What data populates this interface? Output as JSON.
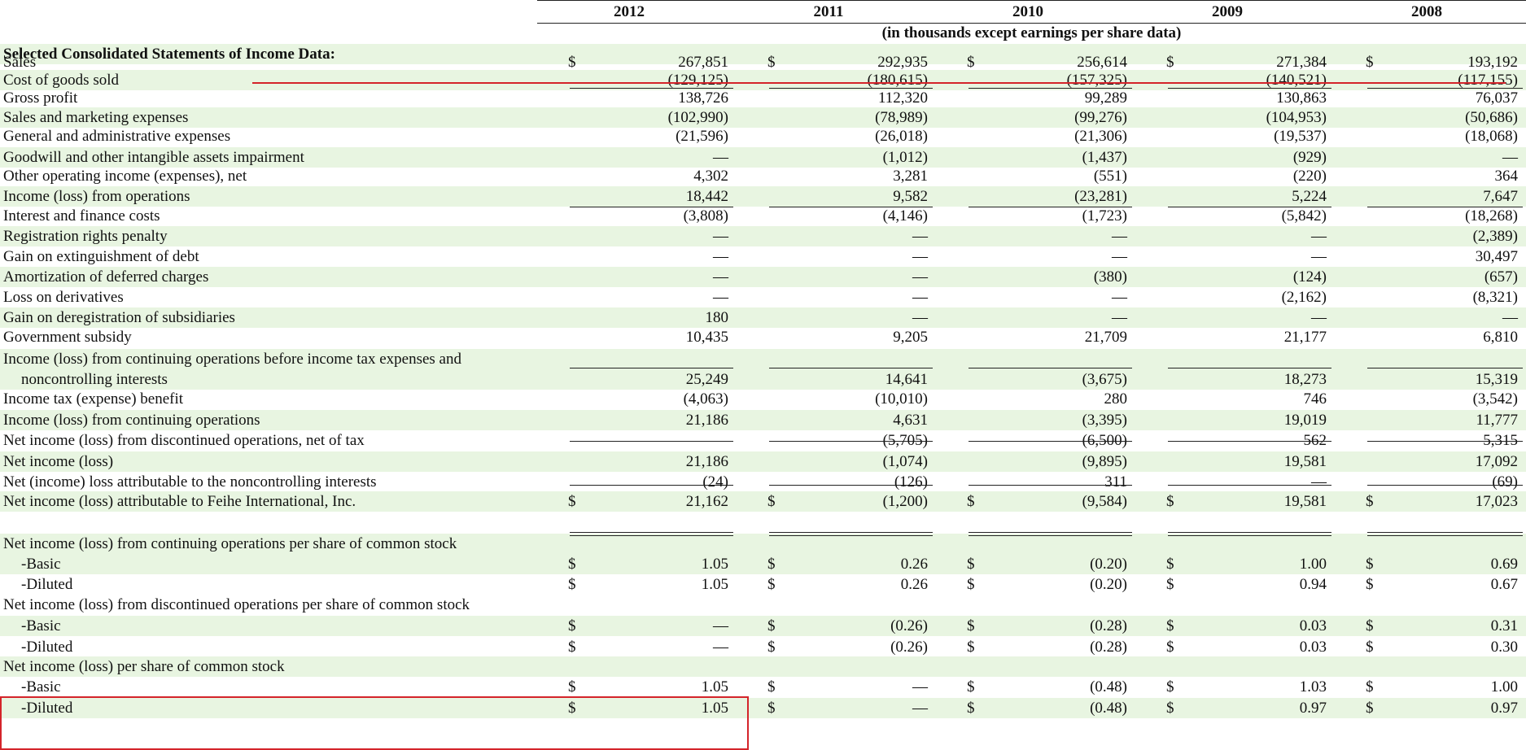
{
  "header": {
    "years": [
      "2012",
      "2011",
      "2010",
      "2009",
      "2008"
    ],
    "subheading": "(in thousands except earnings per share data)"
  },
  "table": {
    "rows": [
      {
        "label": "Selected Consolidated Statements of Income Data:",
        "bold": true,
        "values": [],
        "band": true
      },
      {
        "label": "Sales",
        "values": [
          "267,851",
          "292,935",
          "256,614",
          "271,384",
          "193,192"
        ],
        "dollar": true
      },
      {
        "label": "Cost of goods sold",
        "values": [
          "(129,125)",
          "(180,615)",
          "(157,325)",
          "(140,521)",
          "(117,155)"
        ],
        "band": true
      },
      {
        "label": "Gross profit",
        "values": [
          "138,726",
          "112,320",
          "99,289",
          "130,863",
          "76,037"
        ]
      },
      {
        "label": "Sales and marketing expenses",
        "values": [
          "(102,990)",
          "(78,989)",
          "(99,276)",
          "(104,953)",
          "(50,686)"
        ],
        "band": true
      },
      {
        "label": "General and administrative expenses",
        "values": [
          "(21,596)",
          "(26,018)",
          "(21,306)",
          "(19,537)",
          "(18,068)"
        ]
      },
      {
        "label": "Goodwill and other intangible assets impairment",
        "values": [
          "—",
          "(1,012)",
          "(1,437)",
          "(929)",
          "—"
        ],
        "band": true
      },
      {
        "label": "Other operating income (expenses), net",
        "values": [
          "4,302",
          "3,281",
          "(551)",
          "(220)",
          "364"
        ]
      },
      {
        "label": "Income (loss) from operations",
        "values": [
          "18,442",
          "9,582",
          "(23,281)",
          "5,224",
          "7,647"
        ],
        "band": true
      },
      {
        "label": "Interest and finance costs",
        "values": [
          "(3,808)",
          "(4,146)",
          "(1,723)",
          "(5,842)",
          "(18,268)"
        ]
      },
      {
        "label": "Registration rights penalty",
        "values": [
          "—",
          "—",
          "—",
          "—",
          "(2,389)"
        ],
        "band": true
      },
      {
        "label": "Gain on extinguishment of debt",
        "values": [
          "—",
          "—",
          "—",
          "—",
          "30,497"
        ]
      },
      {
        "label": "Amortization of deferred charges",
        "values": [
          "—",
          "—",
          "(380)",
          "(124)",
          "(657)"
        ],
        "band": true
      },
      {
        "label": "Loss on derivatives",
        "values": [
          "—",
          "—",
          "—",
          "(2,162)",
          "(8,321)"
        ]
      },
      {
        "label": "Gain on deregistration of subsidiaries",
        "values": [
          "180",
          "—",
          "—",
          "—",
          "—"
        ],
        "band": true
      },
      {
        "label": "Government subsidy",
        "values": [
          "10,435",
          "9,205",
          "21,709",
          "21,177",
          "6,810"
        ]
      },
      {
        "label": "Income (loss) from continuing operations before income tax expenses and",
        "values": [],
        "band": true
      },
      {
        "label": "noncontrolling interests",
        "indent": true,
        "values": [
          "25,249",
          "14,641",
          "(3,675)",
          "18,273",
          "15,319"
        ],
        "band": true
      },
      {
        "label": "Income tax (expense) benefit",
        "values": [
          "(4,063)",
          "(10,010)",
          "280",
          "746",
          "(3,542)"
        ]
      },
      {
        "label": "Income (loss) from continuing operations",
        "values": [
          "21,186",
          "4,631",
          "(3,395)",
          "19,019",
          "11,777"
        ],
        "band": true
      },
      {
        "label": "Net income (loss) from discontinued operations, net of tax",
        "values": [
          "—",
          "(5,705)",
          "(6,500)",
          "562",
          "5,315"
        ]
      },
      {
        "label": "Net income (loss)",
        "values": [
          "21,186",
          "(1,074)",
          "(9,895)",
          "19,581",
          "17,092"
        ],
        "band": true
      },
      {
        "label": "Net (income) loss attributable to the noncontrolling interests",
        "values": [
          "(24)",
          "(126)",
          "311",
          "—",
          "(69)"
        ]
      },
      {
        "label": "Net income (loss) attributable to Feihe International, Inc.",
        "values": [
          "21,162",
          "(1,200)",
          "(9,584)",
          "19,581",
          "17,023"
        ],
        "dollar": true,
        "band": true
      },
      {
        "label": "Net income (loss) from continuing operations per share of common stock",
        "values": [],
        "band": true
      },
      {
        "label": "-Basic",
        "indent": true,
        "values": [
          "1.05",
          "0.26",
          "(0.20)",
          "1.00",
          "0.69"
        ],
        "dollar": true,
        "band": true
      },
      {
        "label": "-Diluted",
        "indent": true,
        "values": [
          "1.05",
          "0.26",
          "(0.20)",
          "0.94",
          "0.67"
        ],
        "dollar": true
      },
      {
        "label": "Net income (loss) from discontinued operations per share of common stock",
        "values": []
      },
      {
        "label": "-Basic",
        "indent": true,
        "values": [
          "—",
          "(0.26)",
          "(0.28)",
          "0.03",
          "0.31"
        ],
        "dollar": true,
        "band": true
      },
      {
        "label": "-Diluted",
        "indent": true,
        "values": [
          "—",
          "(0.26)",
          "(0.28)",
          "0.03",
          "0.30"
        ],
        "dollar": true
      },
      {
        "label": "Net income (loss) per share of common stock",
        "values": [],
        "band": true
      },
      {
        "label": "-Basic",
        "indent": true,
        "values": [
          "1.05",
          "—",
          "(0.48)",
          "1.03",
          "1.00"
        ],
        "dollar": true
      },
      {
        "label": "-Diluted",
        "indent": true,
        "values": [
          "1.05",
          "—",
          "(0.48)",
          "0.97",
          "0.97"
        ],
        "dollar": true,
        "band": true
      }
    ],
    "currency_symbol": "$"
  },
  "annotations": {
    "highlight_color": "#d4242a"
  }
}
